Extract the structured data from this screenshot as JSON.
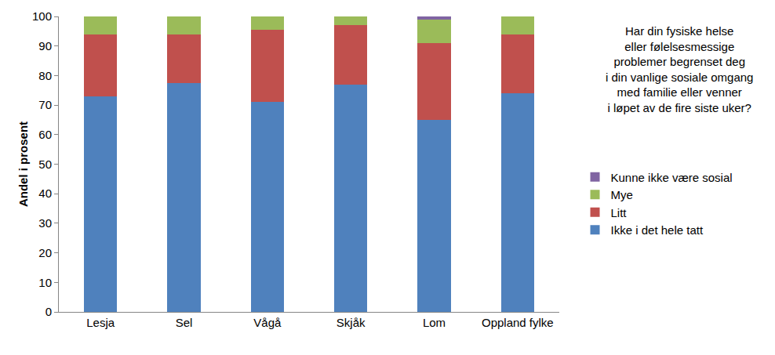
{
  "chart_data": {
    "type": "bar",
    "stacked": true,
    "title": "Har din fysiske helse\neller følelsesmessige\nproblemer begrenset deg\ni din vanlige sosiale omgang\nmed familie eller venner\ni løpet av de fire siste uker?",
    "y_label": "Andel i prosent",
    "categories": [
      "Lesja",
      "Sel",
      "Vågå",
      "Skjåk",
      "Lom",
      "Oppland fylke"
    ],
    "series": [
      {
        "name": "Ikke i det hele tatt",
        "color": "#4f81bd",
        "values": [
          73,
          77.5,
          71,
          77,
          65,
          74
        ]
      },
      {
        "name": "Litt",
        "color": "#c0504d",
        "values": [
          21,
          16.5,
          24.5,
          20,
          26,
          20
        ]
      },
      {
        "name": "Mye",
        "color": "#9bbb59",
        "values": [
          6,
          6,
          4.5,
          3,
          8,
          6
        ]
      },
      {
        "name": "Kunne ikke være sosial",
        "color": "#8064a2",
        "values": [
          0,
          0,
          0,
          0,
          1,
          0
        ]
      }
    ],
    "ylim": [
      0,
      100
    ],
    "yticks": [
      0,
      10,
      20,
      30,
      40,
      50,
      60,
      70,
      80,
      90,
      100
    ],
    "grid": false,
    "legend": "right"
  }
}
